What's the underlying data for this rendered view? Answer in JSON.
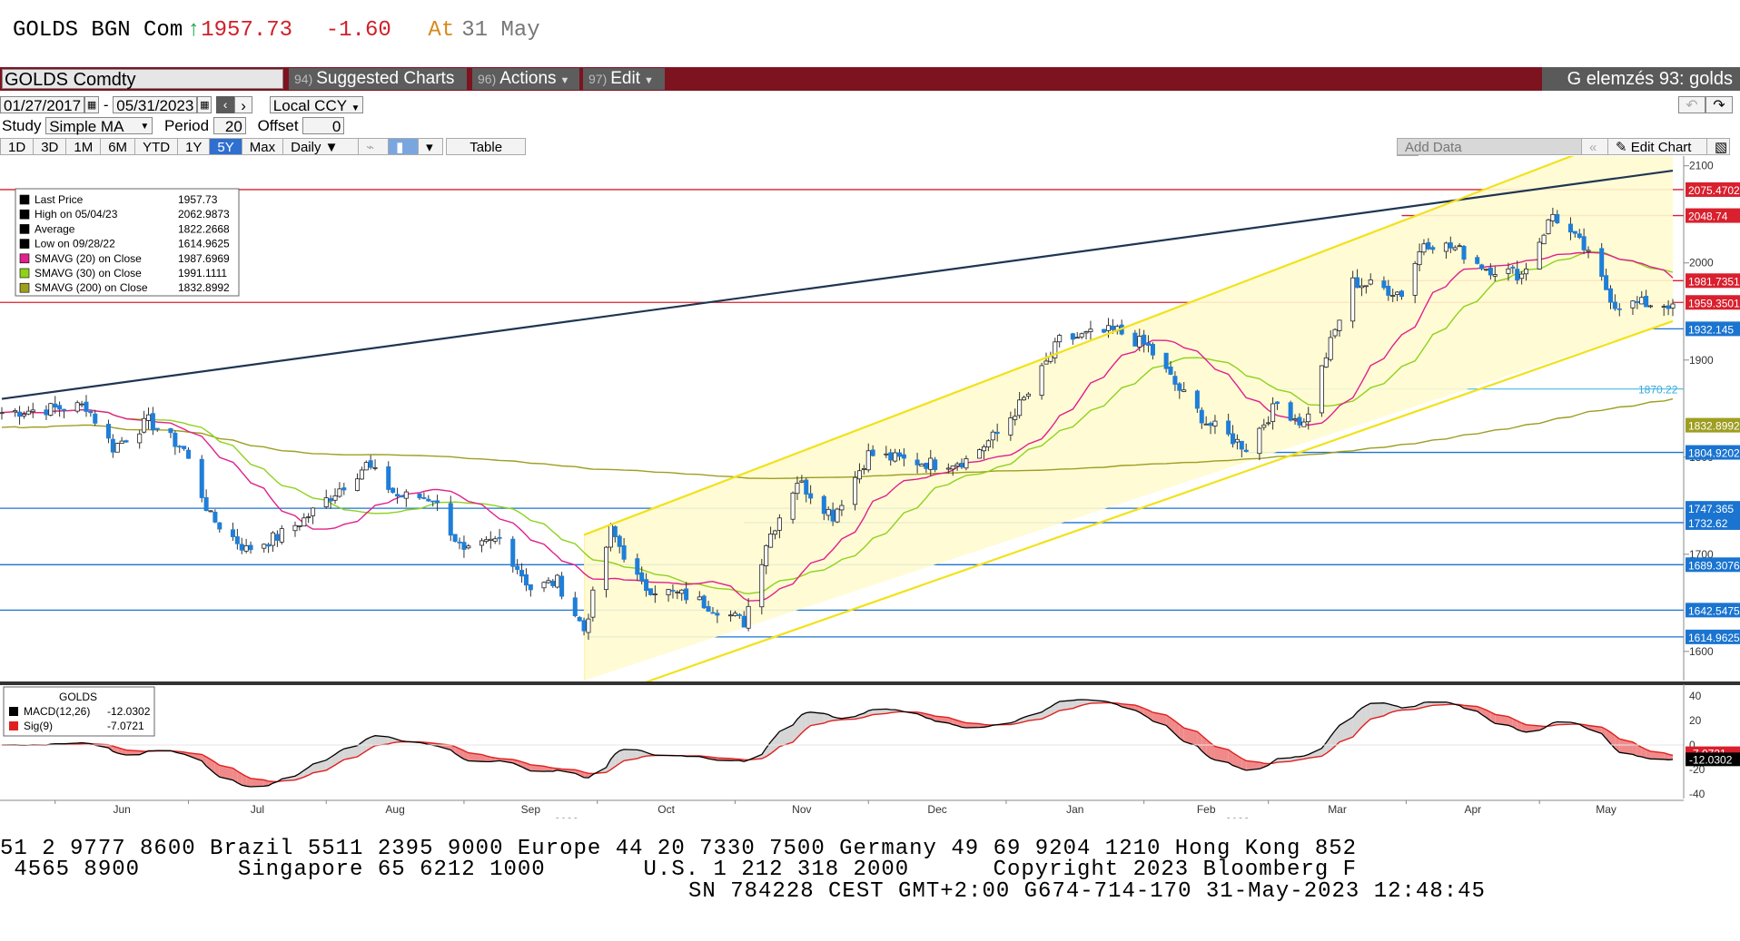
{
  "header": {
    "symbol": "GOLDS BGN Com",
    "arrow": "↑",
    "last": "1957.73",
    "change": "-1.60",
    "at_label": "At",
    "date": "31 May"
  },
  "toolbar": {
    "ticker_field": "GOLDS Comdty",
    "suggested_num": "94)",
    "suggested_label": "Suggested Charts",
    "actions_num": "96)",
    "actions_label": "Actions",
    "edit_num": "97)",
    "edit_label": "Edit",
    "analysis_label": "G elemzés 93: golds"
  },
  "controls": {
    "start_date": "01/27/2017",
    "end_date": "05/31/2023",
    "currency": "Local CCY",
    "study_label": "Study",
    "study_value": "Simple MA",
    "period_label": "Period",
    "period_value": "20",
    "offset_label": "Offset",
    "offset_value": "0",
    "tabs": [
      "1D",
      "3D",
      "1M",
      "6M",
      "YTD",
      "1Y",
      "5Y",
      "Max"
    ],
    "selected_tab": "5Y",
    "frequency": "Daily",
    "table_label": "Table",
    "add_data": "Add Data",
    "edit_chart": "Edit Chart"
  },
  "legend": {
    "items": [
      {
        "label": "Last Price",
        "value": "1957.73",
        "color": "#000000"
      },
      {
        "label": "High on 05/04/23",
        "value": "2062.9873",
        "color": "#000000"
      },
      {
        "label": "Average",
        "value": "1822.2668",
        "color": "#000000"
      },
      {
        "label": "Low on 09/28/22",
        "value": "1614.9625",
        "color": "#000000"
      },
      {
        "label": "SMAVG (20)  on Close",
        "value": "1987.6969",
        "color": "#e0208c"
      },
      {
        "label": "SMAVG (30)  on Close",
        "value": "1991.1111",
        "color": "#8ed21c"
      },
      {
        "label": "SMAVG (200)  on Close",
        "value": "1832.8992",
        "color": "#9e9e22"
      }
    ]
  },
  "macd_legend": {
    "title": "GOLDS",
    "items": [
      {
        "label": "MACD(12,26)",
        "value": "-12.0302",
        "color": "#000000"
      },
      {
        "label": "Sig(9)",
        "value": "-7.0721",
        "color": "#e02020"
      }
    ]
  },
  "footer": {
    "line1": "51 2 9777 8600 Brazil 5511 2395 9000 Europe 44 20 7330 7500 Germany 49 69 9204 1210 Hong Kong 852",
    "line2": " 4565 8900       Singapore 65 6212 1000       U.S. 1 212 318 2000      Copyright 2023 Bloomberg F",
    "line3": "SN 784228 CEST GMT+2:00 G674-714-170 31-May-2023 12:48:45"
  },
  "chart_data": {
    "type": "candlestick",
    "price_axis": {
      "ylim": [
        1570,
        2110
      ],
      "ticks": [
        1600,
        1700,
        1800,
        1900,
        2000,
        2100
      ]
    },
    "macd_axis": {
      "ylim": [
        -45,
        45
      ],
      "ticks": [
        40,
        20,
        0,
        -20,
        -40
      ]
    },
    "x_months": [
      "Jun",
      "Jul",
      "Aug",
      "Sep",
      "Oct",
      "Nov",
      "Dec",
      "Jan",
      "Feb",
      "Mar",
      "Apr",
      "May"
    ],
    "x_years": [
      {
        "label": "2022",
        "before": "Oct"
      },
      {
        "label": "2023",
        "before": "Mar"
      }
    ],
    "date_range": [
      "2022-05-20",
      "2023-05-31"
    ],
    "close_anchors": [
      [
        "2022-05-20",
        1846
      ],
      [
        "2022-06-03",
        1851
      ],
      [
        "2022-06-08",
        1853
      ],
      [
        "2022-06-14",
        1810
      ],
      [
        "2022-06-22",
        1837
      ],
      [
        "2022-06-30",
        1808
      ],
      [
        "2022-07-06",
        1738
      ],
      [
        "2022-07-14",
        1705
      ],
      [
        "2022-07-21",
        1718
      ],
      [
        "2022-07-27",
        1736
      ],
      [
        "2022-08-03",
        1764
      ],
      [
        "2022-08-10",
        1792
      ],
      [
        "2022-08-17",
        1760
      ],
      [
        "2022-08-25",
        1758
      ],
      [
        "2022-09-01",
        1700
      ],
      [
        "2022-09-09",
        1716
      ],
      [
        "2022-09-16",
        1665
      ],
      [
        "2022-09-22",
        1672
      ],
      [
        "2022-09-28",
        1622
      ],
      [
        "2022-10-04",
        1725
      ],
      [
        "2022-10-11",
        1667
      ],
      [
        "2022-10-21",
        1657
      ],
      [
        "2022-10-28",
        1644
      ],
      [
        "2022-11-03",
        1630
      ],
      [
        "2022-11-08",
        1712
      ],
      [
        "2022-11-15",
        1776
      ],
      [
        "2022-11-23",
        1740
      ],
      [
        "2022-12-01",
        1803
      ],
      [
        "2022-12-09",
        1797
      ],
      [
        "2022-12-16",
        1793
      ],
      [
        "2022-12-23",
        1797
      ],
      [
        "2022-12-30",
        1824
      ],
      [
        "2023-01-06",
        1865
      ],
      [
        "2023-01-13",
        1920
      ],
      [
        "2023-01-20",
        1926
      ],
      [
        "2023-01-26",
        1930
      ],
      [
        "2023-02-02",
        1913
      ],
      [
        "2023-02-08",
        1875
      ],
      [
        "2023-02-15",
        1836
      ],
      [
        "2023-02-24",
        1810
      ],
      [
        "2023-03-03",
        1855
      ],
      [
        "2023-03-09",
        1834
      ],
      [
        "2023-03-14",
        1905
      ],
      [
        "2023-03-20",
        1980
      ],
      [
        "2023-03-24",
        1977
      ],
      [
        "2023-03-31",
        1969
      ],
      [
        "2023-04-05",
        2022
      ],
      [
        "2023-04-12",
        2015
      ],
      [
        "2023-04-19",
        1995
      ],
      [
        "2023-04-27",
        1988
      ],
      [
        "2023-05-04",
        2050
      ],
      [
        "2023-05-11",
        2015
      ],
      [
        "2023-05-18",
        1957
      ],
      [
        "2023-05-24",
        1958
      ],
      [
        "2023-05-31",
        1957.73
      ]
    ],
    "series": [
      {
        "name": "SMAVG (20)  on Close",
        "color": "#e0208c",
        "value": 1987.6969
      },
      {
        "name": "SMAVG (30)  on Close",
        "color": "#8ed21c",
        "value": 1991.1111
      },
      {
        "name": "SMAVG (200)  on Close",
        "color": "#9e9e22",
        "value": 1832.8992
      }
    ],
    "horizontal_levels": [
      {
        "value": 2075.4702,
        "color": "#d8202e"
      },
      {
        "value": 2048.74,
        "color": "#d8202e"
      },
      {
        "value": 1981.7351,
        "color": "#d8202e"
      },
      {
        "value": 1959.3501,
        "color": "#d8202e"
      },
      {
        "value": 1932.145,
        "color": "#1a74d0"
      },
      {
        "value": 1870.22,
        "color": "#58c4e8"
      },
      {
        "value": 1832.8992,
        "color": "#9e9e22"
      },
      {
        "value": 1804.9202,
        "color": "#1a74d0"
      },
      {
        "value": 1747.365,
        "color": "#1a74d0"
      },
      {
        "value": 1732.62,
        "color": "#1a74d0"
      },
      {
        "value": 1689.3076,
        "color": "#1a74d0"
      },
      {
        "value": 1642.5475,
        "color": "#1a74d0"
      },
      {
        "value": 1614.9625,
        "color": "#1a74d0"
      }
    ],
    "axis_labels": [
      {
        "text": "2075.4702",
        "value": 2075.4702,
        "bg": "#d8202e"
      },
      {
        "text": "2048.74",
        "value": 2048.74,
        "bg": "#d8202e"
      },
      {
        "text": "1981.7351",
        "value": 1981.7351,
        "bg": "#d8202e"
      },
      {
        "text": "1959.3501",
        "value": 1959.3501,
        "bg": "#d8202e"
      },
      {
        "text": "1932.145",
        "value": 1932.145,
        "bg": "#1a74d0"
      },
      {
        "text": "1870.22",
        "value": 1870.22,
        "bg": "none"
      },
      {
        "text": "1832.8992",
        "value": 1832.8992,
        "bg": "#9e9e22"
      },
      {
        "text": "1804.9202",
        "value": 1804.9202,
        "bg": "#1a74d0"
      },
      {
        "text": "1747.365",
        "value": 1747.365,
        "bg": "#1a74d0"
      },
      {
        "text": "1732.62",
        "value": 1732.62,
        "bg": "#1a74d0"
      },
      {
        "text": "1689.3076",
        "value": 1689.3076,
        "bg": "#1a74d0"
      },
      {
        "text": "1642.5475",
        "value": 1642.5475,
        "bg": "#1a74d0"
      },
      {
        "text": "1614.9625",
        "value": 1614.9625,
        "bg": "#1a74d0"
      }
    ],
    "trendlines": [
      {
        "name": "long-resistance",
        "color": "#1f3552",
        "from": [
          "2022-05-20",
          1860
        ],
        "to": [
          "2023-05-31",
          2095
        ]
      },
      {
        "name": "channel-upper",
        "color": "#f2e21a",
        "from": [
          "2022-09-28",
          1720
        ],
        "to": [
          "2023-05-31",
          2150
        ]
      },
      {
        "name": "channel-lower",
        "color": "#f2e21a",
        "from": [
          "2022-09-28",
          1546
        ],
        "to": [
          "2023-05-31",
          1940
        ]
      }
    ],
    "macd_legend_values": {
      "macd": -12.0302,
      "signal": -7.0721
    },
    "macd_axis_labels": [
      {
        "text": "-7.0721",
        "value": -7.0721,
        "bg": "#d8202e"
      },
      {
        "text": "-12.0302",
        "value": -12.0302,
        "bg": "#000000"
      }
    ]
  }
}
